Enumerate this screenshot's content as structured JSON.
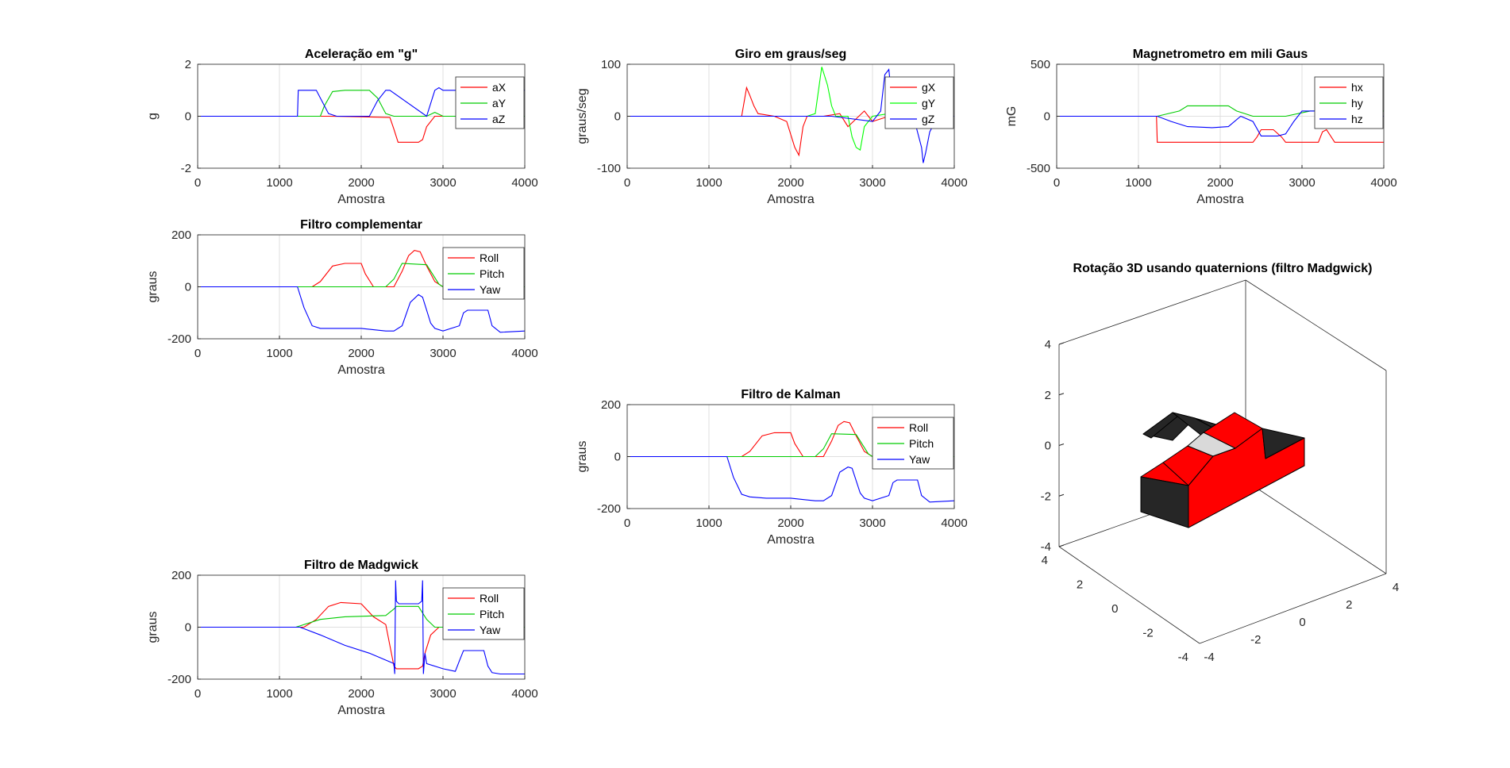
{
  "chart_data": [
    {
      "type": "line",
      "title": "Aceleração em \"g\"",
      "xlabel": "Amostra",
      "ylabel": "g",
      "xlim": [
        0,
        4000
      ],
      "ylim": [
        -2,
        2
      ],
      "xticks": [
        "0",
        "1000",
        "2000",
        "3000",
        "4000"
      ],
      "yticks": [
        "-2",
        "0",
        "2"
      ],
      "legend": "top-right",
      "series": [
        {
          "name": "aX",
          "color": "#ff0000",
          "x": [
            0,
            1230,
            1600,
            2000,
            2350,
            2400,
            2450,
            2700,
            2750,
            2800,
            2900,
            3300,
            4000
          ],
          "y": [
            0,
            0,
            0,
            -0.02,
            -0.05,
            -0.5,
            -1,
            -1,
            -0.9,
            -0.4,
            0,
            0,
            0
          ]
        },
        {
          "name": "aY",
          "color": "#00cc00",
          "x": [
            0,
            1230,
            1500,
            1550,
            1650,
            1800,
            2100,
            2200,
            2300,
            2400,
            2800,
            2900,
            3000,
            4000
          ],
          "y": [
            0,
            0,
            0,
            0.4,
            0.95,
            1.0,
            1.0,
            0.7,
            0.1,
            0,
            0,
            0.15,
            0,
            0
          ]
        },
        {
          "name": "aZ",
          "color": "#0000ff",
          "x": [
            0,
            1220,
            1230,
            1240,
            1450,
            1600,
            1700,
            2100,
            2200,
            2300,
            2350,
            2800,
            2900,
            2950,
            3000,
            3300,
            4000
          ],
          "y": [
            0,
            0,
            1,
            1,
            1,
            0.1,
            0,
            0,
            0.6,
            1,
            1,
            0,
            1,
            1.1,
            1.0,
            1.0,
            1.0
          ]
        }
      ]
    },
    {
      "type": "line",
      "title": "Giro em graus/seg",
      "xlabel": "Amostra",
      "ylabel": "graus/seg",
      "xlim": [
        0,
        4000
      ],
      "ylim": [
        -100,
        100
      ],
      "xticks": [
        "0",
        "1000",
        "2000",
        "3000",
        "4000"
      ],
      "yticks": [
        "-100",
        "0",
        "100"
      ],
      "legend": "top-right",
      "series": [
        {
          "name": "gX",
          "color": "#ff0000",
          "x": [
            0,
            1400,
            1460,
            1500,
            1550,
            1600,
            1800,
            1950,
            2050,
            2100,
            2150,
            2200,
            2400,
            2600,
            2700,
            2900,
            3000,
            3200,
            3400,
            4000
          ],
          "y": [
            0,
            0,
            55,
            40,
            20,
            5,
            0,
            -10,
            -60,
            -75,
            -20,
            0,
            0,
            5,
            -20,
            10,
            -10,
            0,
            0,
            0
          ]
        },
        {
          "name": "gY",
          "color": "#00ff00",
          "x": [
            0,
            2200,
            2300,
            2380,
            2450,
            2500,
            2550,
            2700,
            2750,
            2800,
            2850,
            2900,
            3000,
            3200,
            4000
          ],
          "y": [
            0,
            0,
            5,
            95,
            60,
            20,
            0,
            0,
            -40,
            -60,
            -65,
            -20,
            0,
            5,
            0
          ]
        },
        {
          "name": "gZ",
          "color": "#0000ff",
          "x": [
            0,
            1200,
            1400,
            2400,
            2500,
            3000,
            3100,
            3150,
            3200,
            3250,
            3300,
            3500,
            3600,
            3620,
            3650,
            3700,
            3800,
            4000
          ],
          "y": [
            0,
            0,
            0,
            0,
            0,
            -10,
            10,
            80,
            90,
            10,
            0,
            0,
            -60,
            -90,
            -70,
            -30,
            0,
            0
          ]
        }
      ]
    },
    {
      "type": "line",
      "title": "Magnetrometro em mili Gaus",
      "xlabel": "Amostra",
      "ylabel": "mG",
      "xlim": [
        0,
        4000
      ],
      "ylim": [
        -500,
        500
      ],
      "xticks": [
        "0",
        "1000",
        "2000",
        "3000",
        "4000"
      ],
      "yticks": [
        "-500",
        "0",
        "500"
      ],
      "legend": "top-right",
      "series": [
        {
          "name": "hx",
          "color": "#ff0000",
          "x": [
            0,
            1220,
            1230,
            2400,
            2450,
            2500,
            2650,
            2750,
            2800,
            3200,
            3250,
            3300,
            3400,
            4000
          ],
          "y": [
            0,
            0,
            -250,
            -250,
            -200,
            -130,
            -130,
            -200,
            -250,
            -250,
            -150,
            -130,
            -250,
            -250
          ]
        },
        {
          "name": "hy",
          "color": "#00cc00",
          "x": [
            0,
            1220,
            1230,
            1500,
            1600,
            2100,
            2200,
            2400,
            2800,
            3100,
            3300,
            4000
          ],
          "y": [
            0,
            0,
            0,
            50,
            100,
            100,
            50,
            0,
            0,
            50,
            50,
            50
          ]
        },
        {
          "name": "hz",
          "color": "#0000ff",
          "x": [
            0,
            1220,
            1230,
            1400,
            1600,
            1900,
            2100,
            2250,
            2400,
            2500,
            2700,
            2800,
            2900,
            3000,
            3200,
            3500,
            3700,
            3800,
            4000
          ],
          "y": [
            0,
            0,
            0,
            -50,
            -100,
            -110,
            -100,
            0,
            -50,
            -190,
            -190,
            -170,
            -50,
            50,
            50,
            50,
            30,
            10,
            0
          ]
        }
      ]
    },
    {
      "type": "line",
      "title": "Filtro complementar",
      "xlabel": "Amostra",
      "ylabel": "graus",
      "xlim": [
        0,
        4000
      ],
      "ylim": [
        -200,
        200
      ],
      "xticks": [
        "0",
        "1000",
        "2000",
        "3000",
        "4000"
      ],
      "yticks": [
        "-200",
        "0",
        "200"
      ],
      "legend": "top-right",
      "series": [
        {
          "name": "Roll",
          "color": "#ff0000",
          "x": [
            0,
            1400,
            1500,
            1650,
            1800,
            2000,
            2050,
            2150,
            2400,
            2500,
            2580,
            2650,
            2720,
            2800,
            2900,
            3000,
            4000
          ],
          "y": [
            0,
            0,
            20,
            80,
            90,
            90,
            50,
            0,
            0,
            60,
            120,
            140,
            135,
            80,
            20,
            0,
            0
          ]
        },
        {
          "name": "Pitch",
          "color": "#00cc00",
          "x": [
            0,
            2300,
            2400,
            2500,
            2800,
            2950,
            3000,
            4000
          ],
          "y": [
            0,
            0,
            30,
            90,
            85,
            10,
            0,
            0
          ]
        },
        {
          "name": "Yaw",
          "color": "#0000ff",
          "x": [
            0,
            1220,
            1300,
            1400,
            1500,
            1700,
            2000,
            2300,
            2400,
            2500,
            2600,
            2700,
            2750,
            2850,
            2900,
            3000,
            3200,
            3250,
            3300,
            3550,
            3600,
            3700,
            4000
          ],
          "y": [
            0,
            0,
            -80,
            -150,
            -160,
            -160,
            -160,
            -170,
            -170,
            -150,
            -60,
            -30,
            -40,
            -140,
            -160,
            -170,
            -150,
            -100,
            -90,
            -90,
            -150,
            -175,
            -170
          ]
        }
      ]
    },
    {
      "type": "line",
      "title": "Filtro de Kalman",
      "xlabel": "Amostra",
      "ylabel": "graus",
      "xlim": [
        0,
        4000
      ],
      "ylim": [
        -200,
        200
      ],
      "xticks": [
        "0",
        "1000",
        "2000",
        "3000",
        "4000"
      ],
      "yticks": [
        "-200",
        "0",
        "200"
      ],
      "legend": "top-right",
      "series": [
        {
          "name": "Roll",
          "color": "#ff0000",
          "x": [
            0,
            1400,
            1500,
            1650,
            1800,
            2000,
            2050,
            2150,
            2400,
            2500,
            2580,
            2650,
            2720,
            2800,
            2900,
            3000,
            4000
          ],
          "y": [
            0,
            0,
            20,
            80,
            92,
            92,
            50,
            0,
            0,
            60,
            120,
            135,
            130,
            80,
            20,
            0,
            0
          ]
        },
        {
          "name": "Pitch",
          "color": "#00cc00",
          "x": [
            0,
            2300,
            2400,
            2500,
            2800,
            2950,
            3000,
            4000
          ],
          "y": [
            0,
            0,
            30,
            88,
            85,
            10,
            0,
            0
          ]
        },
        {
          "name": "Yaw",
          "color": "#0000ff",
          "x": [
            0,
            1220,
            1300,
            1400,
            1500,
            1700,
            2000,
            2300,
            2400,
            2500,
            2600,
            2700,
            2750,
            2850,
            2900,
            3000,
            3200,
            3250,
            3300,
            3550,
            3600,
            3700,
            4000
          ],
          "y": [
            0,
            0,
            -80,
            -145,
            -155,
            -160,
            -160,
            -170,
            -170,
            -150,
            -60,
            -40,
            -45,
            -140,
            -160,
            -170,
            -150,
            -100,
            -90,
            -90,
            -150,
            -175,
            -170
          ]
        }
      ]
    },
    {
      "type": "line",
      "title": "Filtro de Madgwick",
      "xlabel": "Amostra",
      "ylabel": "graus",
      "xlim": [
        0,
        4000
      ],
      "ylim": [
        -200,
        200
      ],
      "xticks": [
        "0",
        "1000",
        "2000",
        "3000",
        "4000"
      ],
      "yticks": [
        "-200",
        "0",
        "200"
      ],
      "legend": "top-right",
      "series": [
        {
          "name": "Roll",
          "color": "#ff0000",
          "x": [
            0,
            1300,
            1450,
            1600,
            1750,
            2000,
            2150,
            2300,
            2400,
            2430,
            2700,
            2750,
            2780,
            2850,
            2950,
            3000,
            4000
          ],
          "y": [
            0,
            0,
            30,
            80,
            95,
            90,
            40,
            10,
            -150,
            -160,
            -160,
            -150,
            -100,
            -30,
            0,
            0,
            0
          ]
        },
        {
          "name": "Pitch",
          "color": "#00cc00",
          "x": [
            0,
            1200,
            1500,
            1800,
            2300,
            2400,
            2430,
            2700,
            2800,
            2900,
            3000,
            4000
          ],
          "y": [
            0,
            0,
            30,
            40,
            45,
            70,
            80,
            80,
            30,
            0,
            0,
            0
          ]
        },
        {
          "name": "Yaw",
          "color": "#0000ff",
          "x": [
            0,
            1250,
            1500,
            1800,
            2100,
            2400,
            2410,
            2420,
            2430,
            2460,
            2700,
            2740,
            2750,
            2760,
            2780,
            2800,
            3000,
            3150,
            3200,
            3250,
            3500,
            3550,
            3600,
            3700,
            4000
          ],
          "y": [
            0,
            0,
            -30,
            -70,
            -100,
            -140,
            -180,
            180,
            100,
            90,
            90,
            100,
            180,
            -180,
            -100,
            -140,
            -160,
            -170,
            -130,
            -90,
            -90,
            -150,
            -175,
            -180,
            -180
          ]
        }
      ]
    },
    {
      "type": "3d",
      "title": "Rotação 3D usando quaternions (filtro Madgwick)",
      "zticks": [
        "-4",
        "-2",
        "0",
        "2",
        "4"
      ],
      "xticks": [
        "-4",
        "-2",
        "0",
        "2",
        "4"
      ],
      "yticks": [
        "4",
        "2",
        "0",
        "-2",
        "-4"
      ],
      "colors": {
        "body": "#ff0000",
        "window": "#d9d9d9",
        "dark": "#262626"
      }
    }
  ]
}
